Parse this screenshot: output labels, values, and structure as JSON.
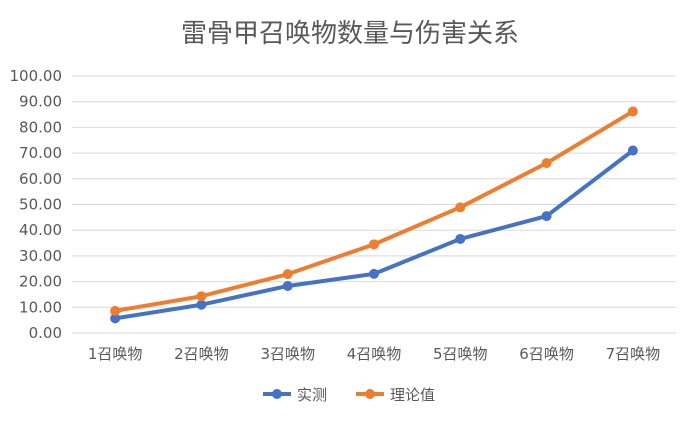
{
  "chart_data": {
    "type": "line",
    "title": "雷骨甲召唤物数量与伤害关系",
    "xlabel": "",
    "ylabel": "",
    "categories": [
      "1召唤物",
      "2召唤物",
      "3召唤物",
      "4召唤物",
      "5召唤物",
      "6召唤物",
      "7召唤物"
    ],
    "ylim": [
      0,
      100
    ],
    "yticks": [
      "0.00",
      "10.00",
      "20.00",
      "30.00",
      "40.00",
      "50.00",
      "60.00",
      "70.00",
      "80.00",
      "90.00",
      "100.00"
    ],
    "grid": true,
    "legend_position": "bottom",
    "series": [
      {
        "name": "实测",
        "color": "#4472c4",
        "values": [
          5.7,
          11.0,
          18.3,
          23.0,
          36.6,
          45.5,
          71.0
        ]
      },
      {
        "name": "理论值",
        "color": "#ed7d31",
        "values": [
          8.6,
          14.3,
          22.9,
          34.5,
          48.9,
          66.1,
          86.2
        ]
      }
    ]
  }
}
